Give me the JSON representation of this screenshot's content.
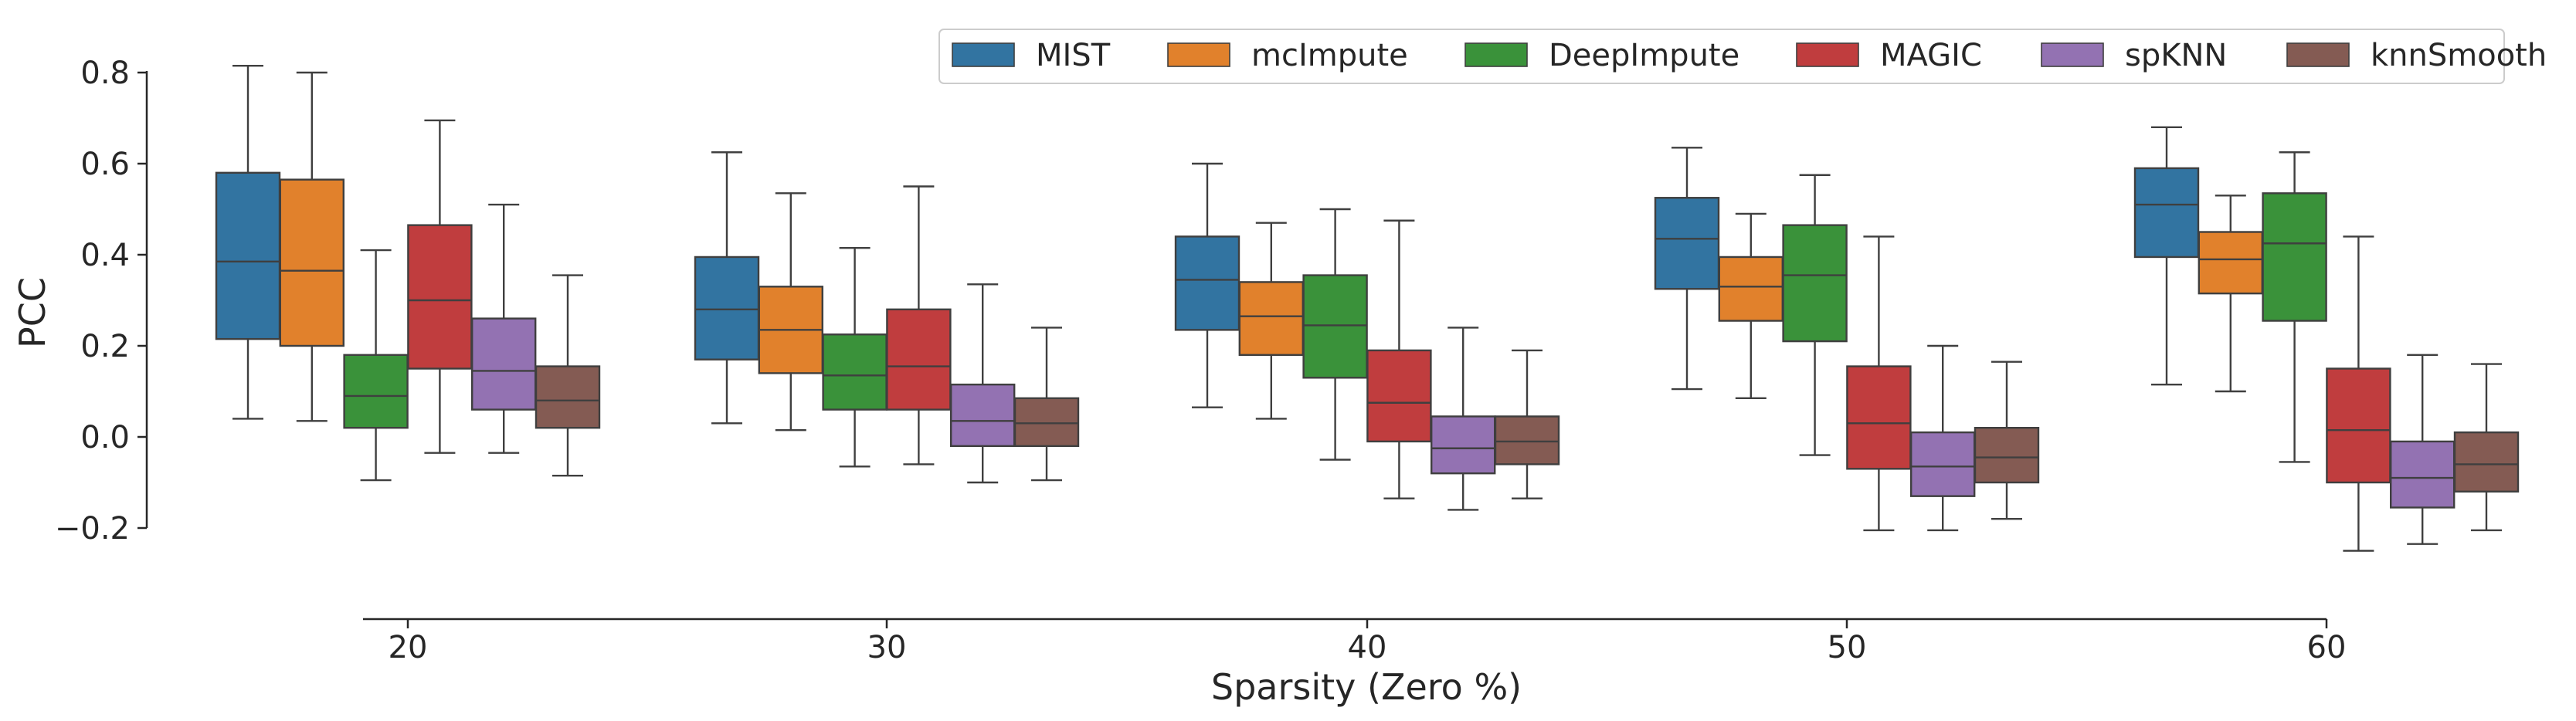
{
  "chart_data": {
    "type": "box",
    "xlabel": "Sparsity (Zero %)",
    "ylabel": "PCC",
    "categories": [
      "20",
      "30",
      "40",
      "50",
      "60"
    ],
    "ylim": [
      -0.2,
      0.8
    ],
    "yticks": [
      -0.2,
      0.0,
      0.2,
      0.4,
      0.6,
      0.8
    ],
    "ytick_labels": [
      "−0.2",
      "0.0",
      "0.2",
      "0.4",
      "0.6",
      "0.8"
    ],
    "legend_position": "top-right",
    "grid": false,
    "series": [
      {
        "name": "MIST",
        "color": "#3274a1",
        "boxes": [
          {
            "whislo": 0.04,
            "q1": 0.215,
            "median": 0.385,
            "q3": 0.58,
            "whishi": 0.815
          },
          {
            "whislo": 0.03,
            "q1": 0.17,
            "median": 0.28,
            "q3": 0.395,
            "whishi": 0.625
          },
          {
            "whislo": 0.065,
            "q1": 0.235,
            "median": 0.345,
            "q3": 0.44,
            "whishi": 0.6
          },
          {
            "whislo": 0.105,
            "q1": 0.325,
            "median": 0.435,
            "q3": 0.525,
            "whishi": 0.635
          },
          {
            "whislo": 0.115,
            "q1": 0.395,
            "median": 0.51,
            "q3": 0.59,
            "whishi": 0.68
          }
        ]
      },
      {
        "name": "mcImpute",
        "color": "#e1812c",
        "boxes": [
          {
            "whislo": 0.035,
            "q1": 0.2,
            "median": 0.365,
            "q3": 0.565,
            "whishi": 0.8
          },
          {
            "whislo": 0.015,
            "q1": 0.14,
            "median": 0.235,
            "q3": 0.33,
            "whishi": 0.535
          },
          {
            "whislo": 0.04,
            "q1": 0.18,
            "median": 0.265,
            "q3": 0.34,
            "whishi": 0.47
          },
          {
            "whislo": 0.085,
            "q1": 0.255,
            "median": 0.33,
            "q3": 0.395,
            "whishi": 0.49
          },
          {
            "whislo": 0.1,
            "q1": 0.315,
            "median": 0.39,
            "q3": 0.45,
            "whishi": 0.53
          }
        ]
      },
      {
        "name": "DeepImpute",
        "color": "#3a923a",
        "boxes": [
          {
            "whislo": -0.095,
            "q1": 0.02,
            "median": 0.09,
            "q3": 0.18,
            "whishi": 0.41
          },
          {
            "whislo": -0.065,
            "q1": 0.06,
            "median": 0.135,
            "q3": 0.225,
            "whishi": 0.415
          },
          {
            "whislo": -0.05,
            "q1": 0.13,
            "median": 0.245,
            "q3": 0.355,
            "whishi": 0.5
          },
          {
            "whislo": -0.04,
            "q1": 0.21,
            "median": 0.355,
            "q3": 0.465,
            "whishi": 0.575
          },
          {
            "whislo": -0.055,
            "q1": 0.255,
            "median": 0.425,
            "q3": 0.535,
            "whishi": 0.625
          }
        ]
      },
      {
        "name": "MAGIC",
        "color": "#c03d3e",
        "boxes": [
          {
            "whislo": -0.035,
            "q1": 0.15,
            "median": 0.3,
            "q3": 0.465,
            "whishi": 0.695
          },
          {
            "whislo": -0.06,
            "q1": 0.06,
            "median": 0.155,
            "q3": 0.28,
            "whishi": 0.55
          },
          {
            "whislo": -0.135,
            "q1": -0.01,
            "median": 0.075,
            "q3": 0.19,
            "whishi": 0.475
          },
          {
            "whislo": -0.205,
            "q1": -0.07,
            "median": 0.03,
            "q3": 0.155,
            "whishi": 0.44
          },
          {
            "whislo": -0.25,
            "q1": -0.1,
            "median": 0.015,
            "q3": 0.15,
            "whishi": 0.44
          }
        ]
      },
      {
        "name": "spKNN",
        "color": "#9372b2",
        "boxes": [
          {
            "whislo": -0.035,
            "q1": 0.06,
            "median": 0.145,
            "q3": 0.26,
            "whishi": 0.51
          },
          {
            "whislo": -0.1,
            "q1": -0.02,
            "median": 0.035,
            "q3": 0.115,
            "whishi": 0.335
          },
          {
            "whislo": -0.16,
            "q1": -0.08,
            "median": -0.025,
            "q3": 0.045,
            "whishi": 0.24
          },
          {
            "whislo": -0.205,
            "q1": -0.13,
            "median": -0.065,
            "q3": 0.01,
            "whishi": 0.2
          },
          {
            "whislo": -0.235,
            "q1": -0.155,
            "median": -0.09,
            "q3": -0.01,
            "whishi": 0.18
          }
        ]
      },
      {
        "name": "knnSmooth",
        "color": "#845b53",
        "boxes": [
          {
            "whislo": -0.085,
            "q1": 0.02,
            "median": 0.08,
            "q3": 0.155,
            "whishi": 0.355
          },
          {
            "whislo": -0.095,
            "q1": -0.02,
            "median": 0.03,
            "q3": 0.085,
            "whishi": 0.24
          },
          {
            "whislo": -0.135,
            "q1": -0.06,
            "median": -0.01,
            "q3": 0.045,
            "whishi": 0.19
          },
          {
            "whislo": -0.18,
            "q1": -0.1,
            "median": -0.045,
            "q3": 0.02,
            "whishi": 0.165
          },
          {
            "whislo": -0.205,
            "q1": -0.12,
            "median": -0.06,
            "q3": 0.01,
            "whishi": 0.16
          }
        ]
      }
    ]
  }
}
